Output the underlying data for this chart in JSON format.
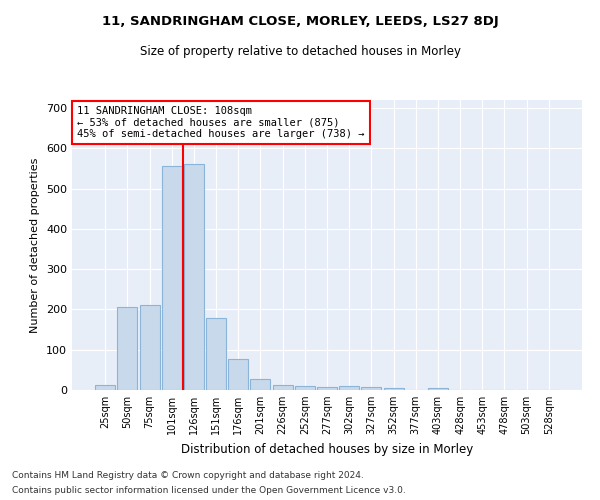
{
  "title1": "11, SANDRINGHAM CLOSE, MORLEY, LEEDS, LS27 8DJ",
  "title2": "Size of property relative to detached houses in Morley",
  "xlabel": "Distribution of detached houses by size in Morley",
  "ylabel": "Number of detached properties",
  "bin_labels": [
    "25sqm",
    "50sqm",
    "75sqm",
    "101sqm",
    "126sqm",
    "151sqm",
    "176sqm",
    "201sqm",
    "226sqm",
    "252sqm",
    "277sqm",
    "302sqm",
    "327sqm",
    "352sqm",
    "377sqm",
    "403sqm",
    "428sqm",
    "453sqm",
    "478sqm",
    "503sqm",
    "528sqm"
  ],
  "bar_values": [
    12,
    205,
    210,
    555,
    560,
    180,
    78,
    28,
    12,
    10,
    8,
    10,
    8,
    5,
    0,
    5,
    0,
    0,
    0,
    0,
    0
  ],
  "bar_color": "#c8d9ec",
  "bar_edge_color": "#8ab4d8",
  "annotation_text": "11 SANDRINGHAM CLOSE: 108sqm\n← 53% of detached houses are smaller (875)\n45% of semi-detached houses are larger (738) →",
  "annotation_box_color": "white",
  "annotation_box_edge_color": "red",
  "vline_color": "red",
  "ylim": [
    0,
    720
  ],
  "yticks": [
    0,
    100,
    200,
    300,
    400,
    500,
    600,
    700
  ],
  "footer1": "Contains HM Land Registry data © Crown copyright and database right 2024.",
  "footer2": "Contains public sector information licensed under the Open Government Licence v3.0.",
  "bg_color": "#ffffff",
  "plot_bg_color": "#e8eef8"
}
